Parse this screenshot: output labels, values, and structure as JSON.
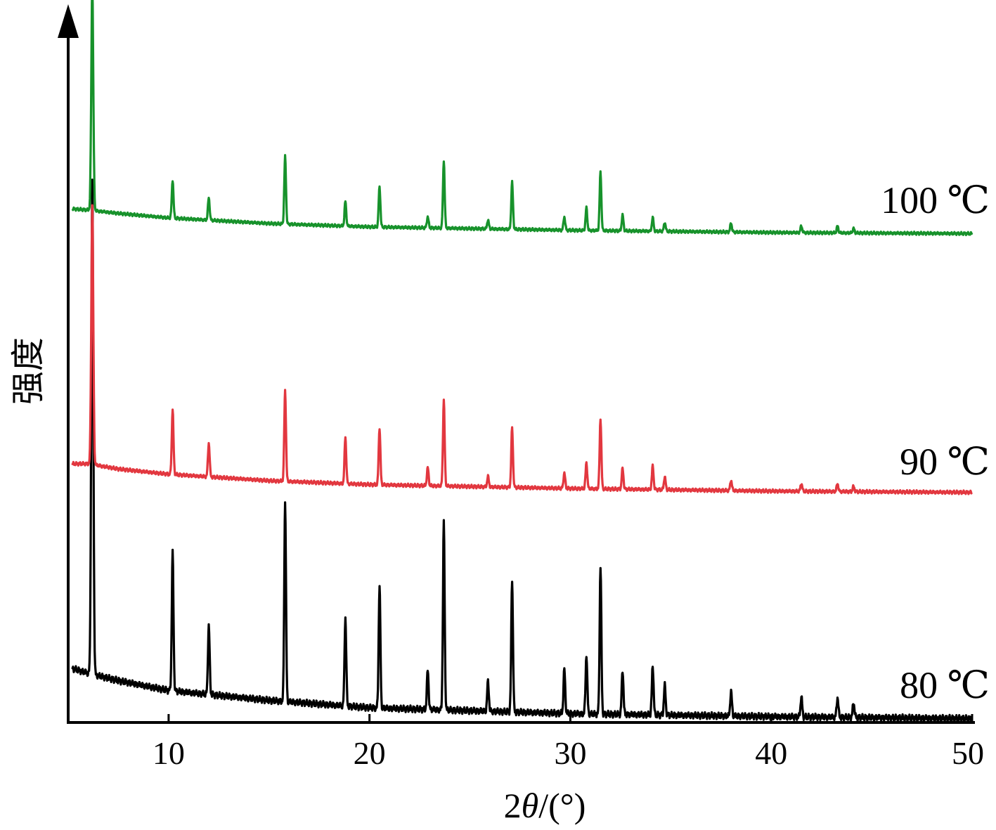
{
  "chart_data": {
    "type": "line",
    "xlabel_prefix": "2",
    "xlabel_theta": "θ",
    "xlabel_suffix": "/(°)",
    "ylabel": "强度",
    "xlim": [
      5,
      50
    ],
    "xticks": [
      10,
      20,
      30,
      40,
      50
    ],
    "yaxis_ticks": false,
    "grid": false,
    "legend": "none (series labeled at right end)",
    "peaks_2theta": [
      6.2,
      10.2,
      12.0,
      15.8,
      18.8,
      20.5,
      22.9,
      23.7,
      25.9,
      27.1,
      29.7,
      30.8,
      31.5,
      32.6,
      34.1,
      34.7,
      38.0,
      41.5,
      43.3,
      44.1
    ],
    "series": [
      {
        "name": "80 ℃",
        "color": "#000000",
        "baseline": [
          [
            5.2,
            0.11
          ],
          [
            6.0,
            0.1
          ],
          [
            7.5,
            0.085
          ],
          [
            10,
            0.065
          ],
          [
            15,
            0.045
          ],
          [
            20,
            0.03
          ],
          [
            30,
            0.018
          ],
          [
            40,
            0.012
          ],
          [
            50,
            0.008
          ]
        ],
        "peak_heights": [
          1.0,
          0.28,
          0.14,
          0.41,
          0.18,
          0.25,
          0.08,
          0.38,
          0.06,
          0.27,
          0.09,
          0.12,
          0.3,
          0.09,
          0.1,
          0.06,
          0.05,
          0.04,
          0.04,
          0.03
        ]
      },
      {
        "name": "90 ℃",
        "color": "#e2373f",
        "baseline": [
          [
            5.2,
            0.13
          ],
          [
            6.0,
            0.13
          ],
          [
            7.5,
            0.11
          ],
          [
            10,
            0.09
          ],
          [
            15,
            0.065
          ],
          [
            20,
            0.05
          ],
          [
            30,
            0.035
          ],
          [
            40,
            0.025
          ],
          [
            50,
            0.02
          ]
        ],
        "peak_heights": [
          1.0,
          0.25,
          0.13,
          0.35,
          0.18,
          0.22,
          0.07,
          0.33,
          0.04,
          0.23,
          0.06,
          0.1,
          0.27,
          0.08,
          0.09,
          0.05,
          0.04,
          0.03,
          0.03,
          0.02
        ]
      },
      {
        "name": "100 ℃",
        "color": "#17922b",
        "baseline": [
          [
            5.2,
            0.14
          ],
          [
            6.0,
            0.135
          ],
          [
            7.5,
            0.12
          ],
          [
            10,
            0.1
          ],
          [
            15,
            0.075
          ],
          [
            20,
            0.06
          ],
          [
            30,
            0.045
          ],
          [
            40,
            0.035
          ],
          [
            50,
            0.03
          ]
        ],
        "peak_heights": [
          1.0,
          0.17,
          0.1,
          0.3,
          0.11,
          0.18,
          0.05,
          0.3,
          0.04,
          0.21,
          0.06,
          0.1,
          0.26,
          0.07,
          0.06,
          0.04,
          0.04,
          0.03,
          0.03,
          0.02
        ]
      }
    ]
  }
}
